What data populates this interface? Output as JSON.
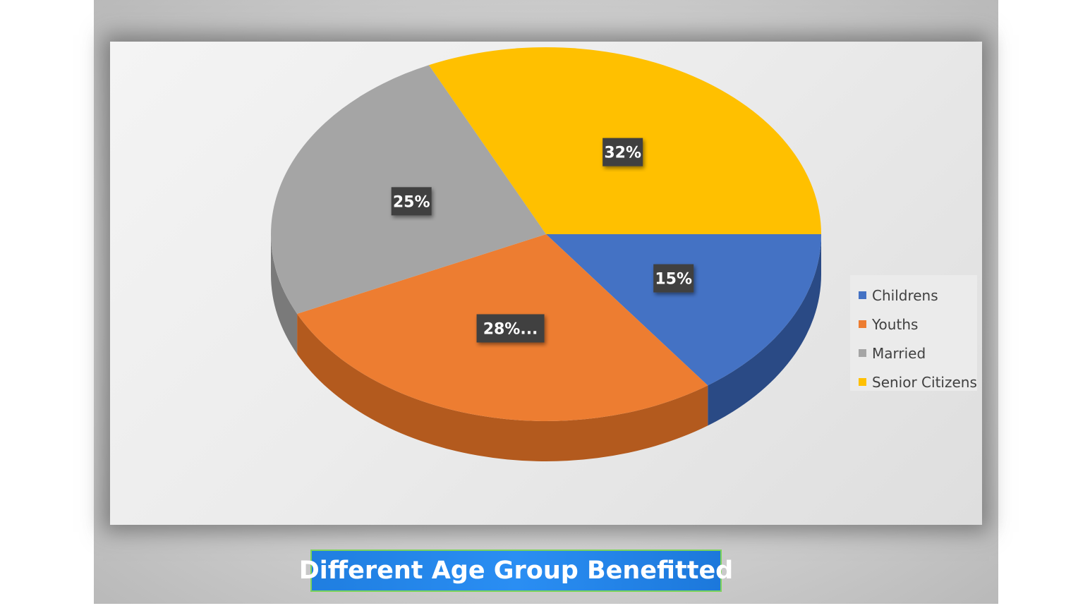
{
  "chart_data": {
    "type": "pie",
    "title": "Different Age Group Benefitted",
    "categories": [
      "Childrens",
      "Youths",
      "Married",
      "Senior Citizens"
    ],
    "values": [
      15,
      28,
      25,
      32
    ],
    "labels": [
      "15%",
      "28%...",
      "25%",
      "32%"
    ],
    "colors": [
      "#4472C4",
      "#ED7D31",
      "#A5A5A5",
      "#FFC000"
    ],
    "side_colors": [
      "#2a4a85",
      "#b35a1e",
      "#7a7a7a",
      "#6b5300"
    ],
    "legend_position": "right",
    "style": "3d"
  }
}
